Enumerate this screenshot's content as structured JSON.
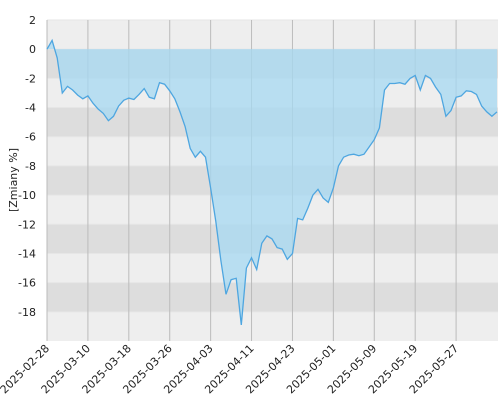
{
  "chart_data": {
    "type": "area",
    "y_label": "[Zmiany %]",
    "categories": [
      "2025-02-28",
      null,
      null,
      null,
      null,
      null,
      null,
      null,
      "2025-03-10",
      null,
      null,
      null,
      null,
      null,
      null,
      null,
      "2025-03-18",
      null,
      null,
      null,
      null,
      null,
      null,
      null,
      "2025-03-26",
      null,
      null,
      null,
      null,
      null,
      null,
      null,
      "2025-04-03",
      null,
      null,
      null,
      null,
      null,
      null,
      null,
      "2025-04-11",
      null,
      null,
      null,
      null,
      null,
      null,
      null,
      "2025-04-23",
      null,
      null,
      null,
      null,
      null,
      null,
      null,
      "2025-05-01",
      null,
      null,
      null,
      null,
      null,
      null,
      null,
      "2025-05-09",
      null,
      null,
      null,
      null,
      null,
      null,
      null,
      "2025-05-19",
      null,
      null,
      null,
      null,
      null,
      null,
      null,
      "2025-05-27",
      null,
      null,
      null,
      null,
      null,
      null,
      null,
      null
    ],
    "series": [
      {
        "color": "#4ea6e0",
        "fill": "#a6d8f2",
        "values": [
          0,
          0.6,
          -0.6,
          -3.0,
          -2.55,
          -2.8,
          -3.15,
          -3.4,
          -3.2,
          -3.7,
          -4.1,
          -4.4,
          -4.9,
          -4.6,
          -3.9,
          -3.5,
          -3.35,
          -3.45,
          -3.1,
          -2.7,
          -3.3,
          -3.4,
          -2.3,
          -2.4,
          -2.85,
          -3.4,
          -4.3,
          -5.3,
          -6.8,
          -7.4,
          -7.0,
          -7.4,
          -9.5,
          -11.8,
          -14.5,
          -16.8,
          -15.8,
          -15.7,
          -18.9,
          -15.0,
          -14.3,
          -15.1,
          -13.3,
          -12.8,
          -13.0,
          -13.6,
          -13.7,
          -14.4,
          -14.0,
          -11.6,
          -11.7,
          -10.9,
          -10.0,
          -9.6,
          -10.2,
          -10.5,
          -9.5,
          -8.0,
          -7.4,
          -7.25,
          -7.2,
          -7.3,
          -7.2,
          -6.7,
          -6.2,
          -5.4,
          -2.8,
          -2.35,
          -2.35,
          -2.3,
          -2.4,
          -2.0,
          -1.8,
          -2.8,
          -1.8,
          -2.0,
          -2.6,
          -3.1,
          -4.6,
          -4.2,
          -3.3,
          -3.2,
          -2.85,
          -2.9,
          -3.1,
          -3.9,
          -4.3,
          -4.6,
          -4.3
        ]
      }
    ],
    "ylim": [
      -20,
      2
    ],
    "yticks": [
      2,
      0,
      -2,
      -4,
      -6,
      -8,
      -10,
      -12,
      -14,
      -16,
      -18
    ],
    "band_colors": [
      "#eeeeee",
      "#dddddd"
    ],
    "grid": true
  }
}
